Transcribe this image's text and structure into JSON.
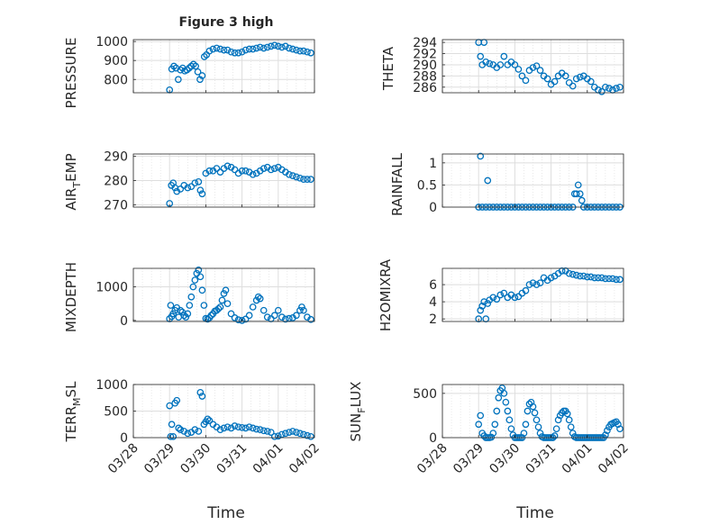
{
  "figure_title": "Figure 3 high",
  "chart_data": [
    {
      "type": "scatter",
      "ylabel": "PRESSURE",
      "xlim": [
        "03/28",
        "04/02"
      ],
      "ylim": [
        730,
        1010
      ],
      "yticks": [
        800,
        900,
        1000
      ],
      "xtick_labels": [],
      "x": [
        29.0,
        29.06,
        29.12,
        29.18,
        29.24,
        29.3,
        29.36,
        29.42,
        29.48,
        29.54,
        29.6,
        29.66,
        29.72,
        29.78,
        29.84,
        29.9,
        29.96,
        30.02,
        30.1,
        30.2,
        30.3,
        30.4,
        30.5,
        30.6,
        30.7,
        30.8,
        30.9,
        31.0,
        31.1,
        31.2,
        31.3,
        31.4,
        31.5,
        31.6,
        31.7,
        31.8,
        31.9,
        32.0,
        32.1,
        32.2,
        32.3,
        32.4,
        32.5,
        32.6,
        32.7,
        32.8,
        32.9
      ],
      "y": [
        745,
        855,
        870,
        860,
        800,
        850,
        860,
        845,
        850,
        860,
        870,
        880,
        870,
        840,
        800,
        820,
        920,
        930,
        950,
        960,
        965,
        960,
        955,
        955,
        945,
        940,
        940,
        945,
        955,
        960,
        960,
        965,
        970,
        965,
        970,
        975,
        980,
        975,
        970,
        975,
        965,
        960,
        955,
        950,
        950,
        945,
        940
      ]
    },
    {
      "type": "scatter",
      "ylabel": "THETA",
      "xlim": [
        "03/28",
        "04/02"
      ],
      "ylim": [
        285,
        294.5
      ],
      "yticks": [
        286,
        288,
        290,
        292,
        294
      ],
      "xtick_labels": [],
      "x": [
        29.0,
        29.05,
        29.1,
        29.15,
        29.2,
        29.3,
        29.4,
        29.5,
        29.6,
        29.7,
        29.8,
        29.9,
        30.0,
        30.1,
        30.2,
        30.3,
        30.4,
        30.5,
        30.6,
        30.7,
        30.8,
        30.9,
        31.0,
        31.1,
        31.2,
        31.3,
        31.4,
        31.5,
        31.6,
        31.7,
        31.8,
        31.9,
        32.0,
        32.1,
        32.2,
        32.3,
        32.4,
        32.5,
        32.6,
        32.7,
        32.8,
        32.9
      ],
      "y": [
        294,
        291.5,
        290,
        294,
        290.5,
        290.2,
        290,
        289.5,
        290,
        291.5,
        290,
        290.5,
        290,
        289.2,
        288,
        287.2,
        289,
        289.5,
        289.8,
        289,
        288,
        287.5,
        286.5,
        287,
        288,
        288.5,
        288,
        286.8,
        286.2,
        287.5,
        287.8,
        288,
        287.5,
        287,
        286,
        285.5,
        285.2,
        286,
        285.8,
        285.5,
        285.8,
        286
      ]
    },
    {
      "type": "scatter",
      "ylabel": "AIR_TEMP",
      "xlim": [
        "03/28",
        "04/02"
      ],
      "ylim": [
        269,
        291
      ],
      "yticks": [
        270,
        280,
        290
      ],
      "xtick_labels": [],
      "x": [
        29.0,
        29.05,
        29.1,
        29.15,
        29.2,
        29.3,
        29.4,
        29.5,
        29.6,
        29.7,
        29.8,
        29.85,
        29.9,
        30.0,
        30.1,
        30.2,
        30.3,
        30.4,
        30.5,
        30.6,
        30.7,
        30.8,
        30.9,
        31.0,
        31.1,
        31.2,
        31.3,
        31.4,
        31.5,
        31.6,
        31.7,
        31.8,
        31.9,
        32.0,
        32.1,
        32.2,
        32.3,
        32.4,
        32.5,
        32.6,
        32.7,
        32.8,
        32.9
      ],
      "y": [
        270.5,
        278,
        279,
        277,
        275.5,
        276.5,
        278,
        277,
        277.5,
        279,
        279.5,
        276,
        274.5,
        283,
        284,
        284,
        285,
        283.5,
        285,
        286,
        285.5,
        284.5,
        283,
        284,
        284,
        283.5,
        282.5,
        283,
        284,
        285,
        285.5,
        284.5,
        285,
        285.5,
        284.5,
        283.5,
        282.5,
        282,
        281.5,
        281,
        280.5,
        280.5,
        280.5
      ]
    },
    {
      "type": "scatter",
      "ylabel": "RAINFALL",
      "xlim": [
        "03/28",
        "04/02"
      ],
      "ylim": [
        0,
        1.2
      ],
      "yticks": [
        0,
        0.5,
        1
      ],
      "xtick_labels": [],
      "x": [
        29.0,
        29.05,
        29.1,
        29.2,
        29.25,
        29.3,
        29.4,
        29.5,
        29.6,
        29.7,
        29.8,
        29.9,
        30.0,
        30.1,
        30.2,
        30.3,
        30.4,
        30.5,
        30.6,
        30.7,
        30.8,
        30.9,
        31.0,
        31.1,
        31.2,
        31.3,
        31.4,
        31.5,
        31.6,
        31.65,
        31.7,
        31.75,
        31.8,
        31.85,
        31.9,
        32.0,
        32.1,
        32.2,
        32.3,
        32.4,
        32.5,
        32.6,
        32.7,
        32.8,
        32.9
      ],
      "y": [
        0,
        1.15,
        0,
        0,
        0.6,
        0,
        0,
        0,
        0,
        0,
        0,
        0,
        0,
        0,
        0,
        0,
        0,
        0,
        0,
        0,
        0,
        0,
        0,
        0,
        0,
        0,
        0,
        0,
        0,
        0.3,
        0.3,
        0.5,
        0.3,
        0.15,
        0,
        0,
        0,
        0,
        0,
        0,
        0,
        0,
        0,
        0,
        0
      ]
    },
    {
      "type": "scatter",
      "ylabel": "MIXDEPTH",
      "xlim": [
        "03/28",
        "04/02"
      ],
      "ylim": [
        -30,
        1550
      ],
      "yticks": [
        0,
        1000
      ],
      "xtick_labels": [],
      "x": [
        29.0,
        29.03,
        29.06,
        29.1,
        29.15,
        29.2,
        29.25,
        29.3,
        29.35,
        29.4,
        29.45,
        29.5,
        29.55,
        29.6,
        29.65,
        29.7,
        29.75,
        29.8,
        29.85,
        29.9,
        29.95,
        30.0,
        30.05,
        30.1,
        30.15,
        30.2,
        30.25,
        30.3,
        30.35,
        30.4,
        30.45,
        30.5,
        30.55,
        30.6,
        30.7,
        30.8,
        30.9,
        31.0,
        31.1,
        31.2,
        31.3,
        31.4,
        31.45,
        31.5,
        31.6,
        31.7,
        31.8,
        31.9,
        32.0,
        32.1,
        32.2,
        32.3,
        32.4,
        32.5,
        32.6,
        32.65,
        32.7,
        32.8,
        32.9
      ],
      "y": [
        50,
        450,
        120,
        200,
        300,
        380,
        100,
        300,
        250,
        150,
        100,
        200,
        450,
        700,
        1000,
        1200,
        1400,
        1500,
        1300,
        900,
        450,
        60,
        40,
        80,
        150,
        200,
        280,
        300,
        350,
        400,
        600,
        800,
        900,
        500,
        200,
        80,
        20,
        0,
        40,
        150,
        400,
        600,
        700,
        650,
        300,
        100,
        50,
        150,
        300,
        100,
        40,
        60,
        80,
        150,
        300,
        400,
        300,
        100,
        30
      ]
    },
    {
      "type": "scatter",
      "ylabel": "H2OMIXRA",
      "xlim": [
        "03/28",
        "04/02"
      ],
      "ylim": [
        1.7,
        7.9
      ],
      "yticks": [
        2,
        4,
        6
      ],
      "xtick_labels": [],
      "x": [
        29.0,
        29.05,
        29.1,
        29.15,
        29.2,
        29.25,
        29.3,
        29.4,
        29.5,
        29.6,
        29.7,
        29.8,
        29.9,
        30.0,
        30.1,
        30.2,
        30.3,
        30.4,
        30.5,
        30.6,
        30.7,
        30.8,
        30.9,
        31.0,
        31.1,
        31.2,
        31.3,
        31.4,
        31.5,
        31.6,
        31.7,
        31.8,
        31.9,
        32.0,
        32.1,
        32.2,
        32.3,
        32.4,
        32.5,
        32.6,
        32.7,
        32.8,
        32.9
      ],
      "y": [
        2,
        3,
        3.5,
        4,
        2,
        3.8,
        4.2,
        4.5,
        4.3,
        4.8,
        5,
        4.5,
        4.8,
        4.5,
        4.6,
        5,
        5.3,
        6,
        6.2,
        6,
        6.2,
        6.8,
        6.5,
        6.8,
        7,
        7.3,
        7.6,
        7.6,
        7.3,
        7.2,
        7.1,
        7,
        7,
        6.9,
        6.9,
        6.8,
        6.8,
        6.8,
        6.7,
        6.7,
        6.7,
        6.6,
        6.6
      ]
    },
    {
      "type": "scatter",
      "ylabel": "TERR_MSL",
      "xlim": [
        "03/28",
        "04/02"
      ],
      "ylim": [
        0,
        1000
      ],
      "yticks": [
        0,
        500,
        1000
      ],
      "xtick_labels": [
        "03/28",
        "03/29",
        "03/30",
        "03/31",
        "04/01",
        "04/02"
      ],
      "xlabel": "Time",
      "x": [
        29.0,
        29.03,
        29.06,
        29.1,
        29.15,
        29.2,
        29.25,
        29.3,
        29.4,
        29.5,
        29.6,
        29.7,
        29.8,
        29.85,
        29.9,
        29.95,
        30.0,
        30.05,
        30.1,
        30.2,
        30.3,
        30.4,
        30.5,
        30.6,
        30.7,
        30.8,
        30.9,
        31.0,
        31.1,
        31.2,
        31.3,
        31.4,
        31.5,
        31.6,
        31.7,
        31.8,
        31.9,
        32.0,
        32.1,
        32.2,
        32.3,
        32.4,
        32.5,
        32.6,
        32.7,
        32.8,
        32.9
      ],
      "y": [
        600,
        20,
        250,
        20,
        650,
        700,
        180,
        150,
        120,
        80,
        100,
        150,
        120,
        850,
        780,
        250,
        300,
        350,
        320,
        250,
        200,
        150,
        180,
        200,
        180,
        220,
        200,
        190,
        180,
        200,
        180,
        160,
        150,
        130,
        120,
        100,
        20,
        30,
        60,
        80,
        100,
        120,
        100,
        80,
        60,
        40,
        20
      ]
    },
    {
      "type": "scatter",
      "ylabel": "SUN_FLUX",
      "xlim": [
        "03/28",
        "04/02"
      ],
      "ylim": [
        0,
        600
      ],
      "yticks": [
        0,
        500
      ],
      "xtick_labels": [
        "03/28",
        "03/29",
        "03/30",
        "03/31",
        "04/01",
        "04/02"
      ],
      "xlabel": "Time",
      "x": [
        29.0,
        29.05,
        29.1,
        29.15,
        29.2,
        29.25,
        29.3,
        29.35,
        29.4,
        29.45,
        29.5,
        29.55,
        29.6,
        29.65,
        29.7,
        29.75,
        29.8,
        29.85,
        29.9,
        29.95,
        30.0,
        30.05,
        30.1,
        30.15,
        30.2,
        30.25,
        30.3,
        30.35,
        30.4,
        30.45,
        30.5,
        30.55,
        30.6,
        30.65,
        30.7,
        30.75,
        30.8,
        30.85,
        30.9,
        30.95,
        31.0,
        31.05,
        31.1,
        31.15,
        31.2,
        31.25,
        31.3,
        31.35,
        31.4,
        31.45,
        31.5,
        31.55,
        31.6,
        31.65,
        31.7,
        31.75,
        31.8,
        31.85,
        31.9,
        31.95,
        32.0,
        32.05,
        32.1,
        32.15,
        32.2,
        32.25,
        32.3,
        32.35,
        32.4,
        32.45,
        32.5,
        32.55,
        32.6,
        32.65,
        32.7,
        32.75,
        32.8,
        32.85,
        32.9
      ],
      "y": [
        150,
        250,
        50,
        20,
        0,
        0,
        0,
        5,
        50,
        150,
        300,
        450,
        530,
        560,
        500,
        400,
        300,
        200,
        100,
        30,
        0,
        0,
        0,
        0,
        0,
        50,
        150,
        300,
        380,
        400,
        350,
        280,
        200,
        120,
        50,
        10,
        0,
        0,
        0,
        0,
        0,
        0,
        20,
        100,
        200,
        250,
        280,
        300,
        300,
        270,
        200,
        120,
        50,
        10,
        0,
        0,
        0,
        0,
        0,
        0,
        0,
        0,
        0,
        0,
        0,
        0,
        0,
        0,
        0,
        0,
        30,
        80,
        120,
        150,
        160,
        170,
        180,
        150,
        100
      ]
    }
  ]
}
